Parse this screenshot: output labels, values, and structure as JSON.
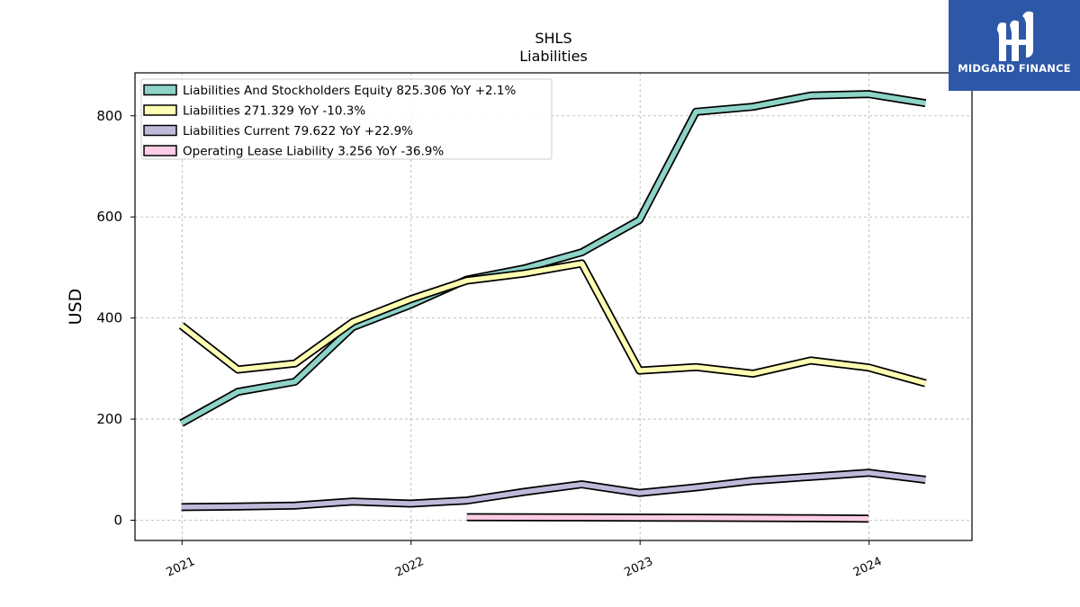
{
  "brand": {
    "name": "MIDGARD FINANCE"
  },
  "chart_data": {
    "type": "line",
    "title": "SHLS",
    "subtitle": "Liabilities",
    "xlabel": "",
    "ylabel": "USD",
    "ylim": [
      -40,
      885
    ],
    "xlim": [
      "2020-10-18",
      "2024-06-13"
    ],
    "x_ticks": [
      "2021",
      "2022",
      "2023",
      "2024"
    ],
    "x_tick_dates": [
      "2021-01-01",
      "2022-01-01",
      "2023-01-01",
      "2024-01-01"
    ],
    "y_ticks": [
      0,
      200,
      400,
      600,
      800
    ],
    "grid": true,
    "legend_position": "top-left",
    "series": [
      {
        "name": "Liabilities And Stockholders Equity",
        "legend": "Liabilities And Stockholders Equity  825.306 YoY +2.1%",
        "color": "#8dd3c7",
        "points": [
          [
            "2020-12-31",
            192
          ],
          [
            "2021-03-31",
            254
          ],
          [
            "2021-06-30",
            274
          ],
          [
            "2021-09-30",
            382
          ],
          [
            "2021-12-31",
            426
          ],
          [
            "2022-03-31",
            476
          ],
          [
            "2022-06-30",
            498
          ],
          [
            "2022-09-30",
            530
          ],
          [
            "2022-12-31",
            594
          ],
          [
            "2023-03-31",
            808
          ],
          [
            "2023-06-30",
            818
          ],
          [
            "2023-09-30",
            840
          ],
          [
            "2023-12-31",
            843
          ],
          [
            "2024-03-31",
            825
          ]
        ]
      },
      {
        "name": "Liabilities",
        "legend": "Liabilities  271.329 YoY -10.3%",
        "color": "#ffffb3",
        "points": [
          [
            "2020-12-31",
            385
          ],
          [
            "2021-03-31",
            298
          ],
          [
            "2021-06-30",
            310
          ],
          [
            "2021-09-30",
            392
          ],
          [
            "2021-12-31",
            437
          ],
          [
            "2022-03-31",
            474
          ],
          [
            "2022-06-30",
            488
          ],
          [
            "2022-09-30",
            508
          ],
          [
            "2022-12-31",
            296
          ],
          [
            "2023-03-31",
            303
          ],
          [
            "2023-06-30",
            290
          ],
          [
            "2023-09-30",
            316
          ],
          [
            "2023-12-31",
            302
          ],
          [
            "2024-03-31",
            271
          ]
        ]
      },
      {
        "name": "Liabilities Current",
        "legend": "Liabilities Current  79.622 YoY +22.9%",
        "color": "#bebada",
        "points": [
          [
            "2020-12-31",
            26
          ],
          [
            "2021-03-31",
            27
          ],
          [
            "2021-06-30",
            29
          ],
          [
            "2021-09-30",
            37
          ],
          [
            "2021-12-31",
            33
          ],
          [
            "2022-03-31",
            39
          ],
          [
            "2022-06-30",
            56
          ],
          [
            "2022-09-30",
            71
          ],
          [
            "2022-12-31",
            54
          ],
          [
            "2023-03-31",
            65
          ],
          [
            "2023-06-30",
            78
          ],
          [
            "2023-09-30",
            86
          ],
          [
            "2023-12-31",
            94
          ],
          [
            "2024-03-31",
            80
          ]
        ]
      },
      {
        "name": "Operating Lease Liability",
        "legend": "Operating Lease Liability  3.256 YoY -36.9%",
        "color": "#fccde5",
        "points": [
          [
            "2022-03-31",
            6
          ],
          [
            "2022-06-30",
            5.9
          ],
          [
            "2022-09-30",
            5.6
          ],
          [
            "2022-12-31",
            5.2
          ],
          [
            "2023-03-31",
            4.9
          ],
          [
            "2023-06-30",
            4.5
          ],
          [
            "2023-09-30",
            4.0
          ],
          [
            "2023-12-31",
            3.3
          ]
        ]
      }
    ]
  }
}
